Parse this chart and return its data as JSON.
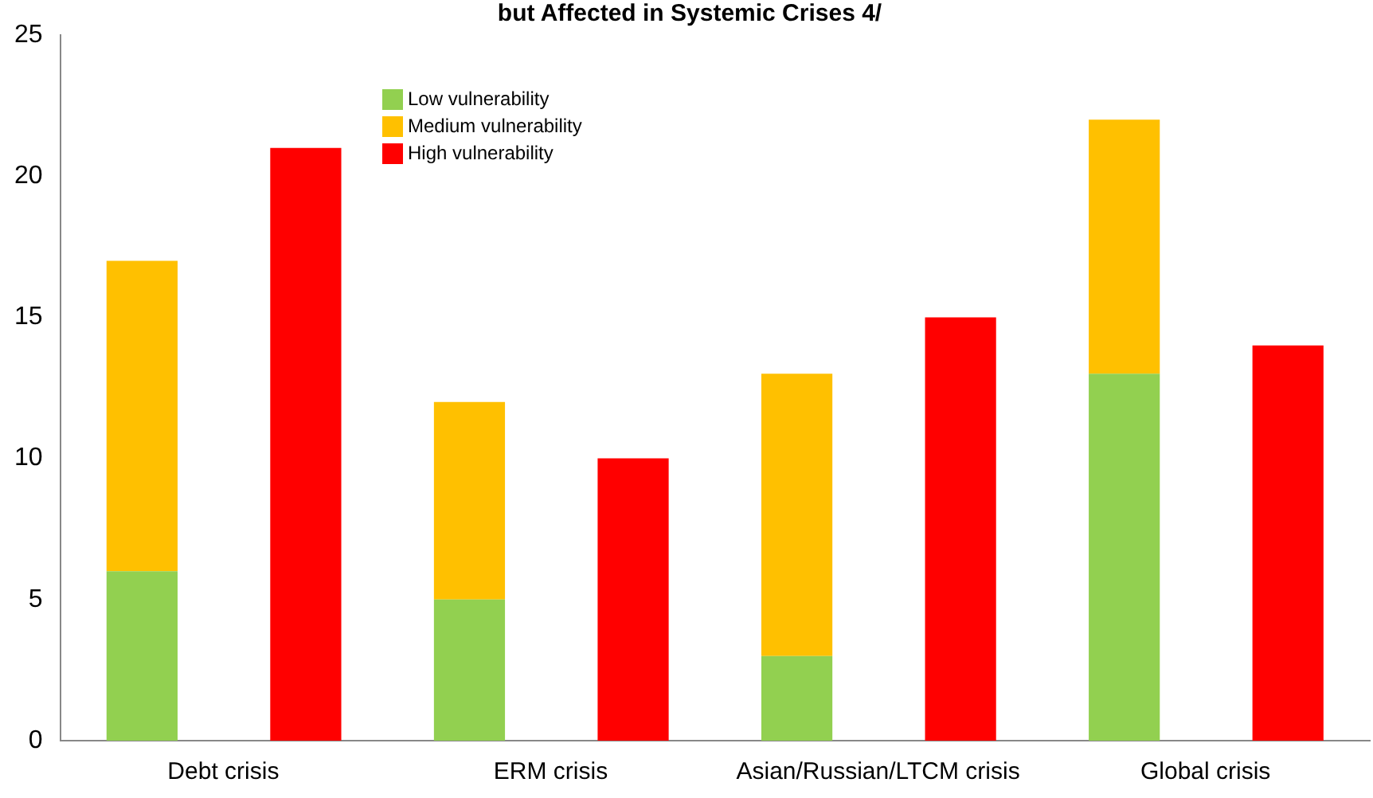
{
  "chart_data": {
    "type": "bar",
    "title": "but Affected in Systemic Crises 4/",
    "categories": [
      "Debt crisis",
      null,
      "ERM crisis",
      null,
      "Asian/Russian/LTCM crisis",
      null,
      "Global crisis",
      null
    ],
    "series": [
      {
        "name": "Low vulnerability",
        "color": "#92d050",
        "values": [
          6,
          null,
          5,
          null,
          3,
          null,
          13,
          null
        ]
      },
      {
        "name": "Medium vulnerability",
        "color": "#ffc000",
        "values": [
          11,
          null,
          7,
          null,
          10,
          null,
          9,
          null
        ]
      },
      {
        "name": "High vulnerability",
        "color": "#ff0000",
        "values": [
          null,
          21,
          null,
          10,
          null,
          15,
          null,
          14
        ]
      }
    ],
    "stacked": true,
    "ylim": [
      0,
      25
    ],
    "yticks": [
      0,
      5,
      10,
      15,
      20,
      25
    ],
    "grid": false,
    "legend": "top left"
  }
}
